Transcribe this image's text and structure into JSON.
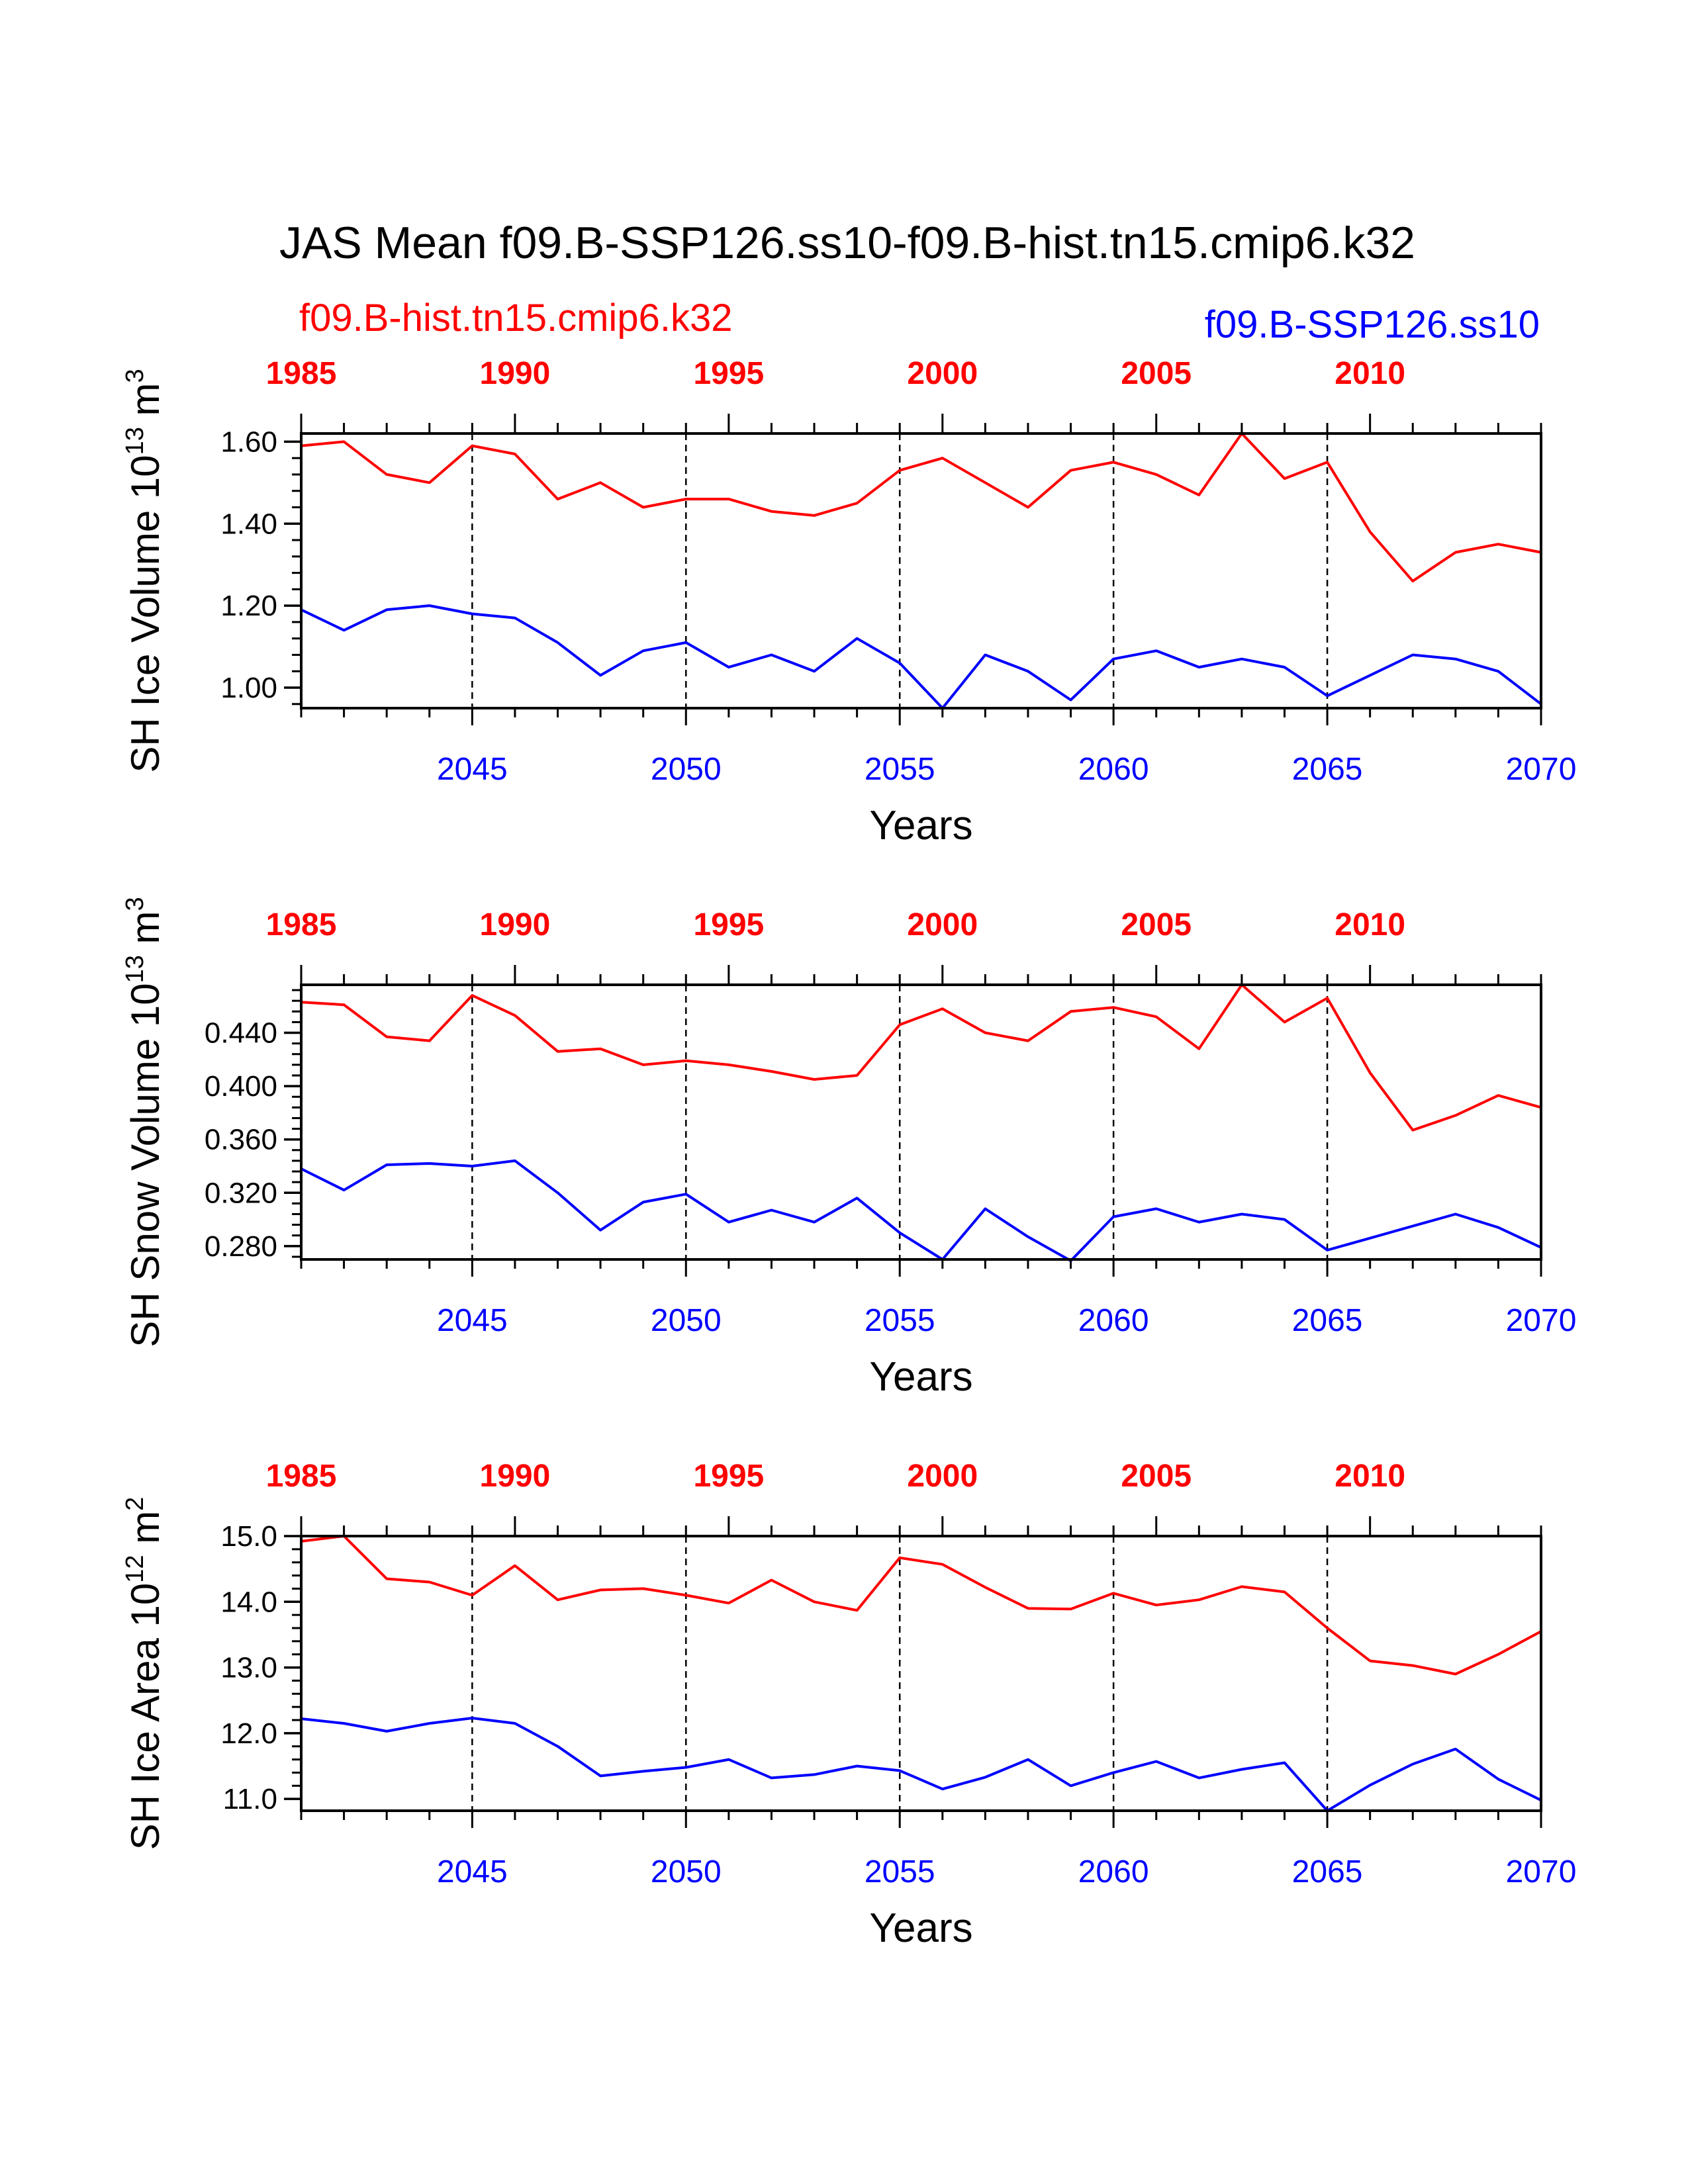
{
  "title": "JAS Mean f09.B-SSP126.ss10-f09.B-hist.tn15.cmip6.k32",
  "legend": {
    "hist_label": "f09.B-hist.tn15.cmip6.k32",
    "ssp_label": "f09.B-SSP126.ss10"
  },
  "colors": {
    "hist": "#ff0000",
    "ssp": "#0000ff",
    "axis": "#000000"
  },
  "chart_data": [
    {
      "type": "line",
      "ylabel_main": "SH Ice Volume 10",
      "ylabel_exp": "13",
      "ylabel_unit": " m",
      "ylabel_unit_exp": "3",
      "xlabel": "Years",
      "ylim": [
        0.95,
        1.62
      ],
      "yticks": [
        1.0,
        1.2,
        1.4,
        1.6
      ],
      "yticklabels": [
        "1.00",
        "1.20",
        "1.40",
        "1.60"
      ],
      "yminor_step": 0.04,
      "x_bottom": [
        2041,
        2042,
        2043,
        2044,
        2045,
        2046,
        2047,
        2048,
        2049,
        2050,
        2051,
        2052,
        2053,
        2054,
        2055,
        2056,
        2057,
        2058,
        2059,
        2060,
        2061,
        2062,
        2063,
        2064,
        2065,
        2066,
        2067,
        2068,
        2069,
        2070
      ],
      "x_top": [
        1985,
        1986,
        1987,
        1988,
        1989,
        1990,
        1991,
        1992,
        1993,
        1994,
        1995,
        1996,
        1997,
        1998,
        1999,
        2000,
        2001,
        2002,
        2003,
        2004,
        2005,
        2006,
        2007,
        2008,
        2009,
        2010,
        2011,
        2012,
        2013,
        2014
      ],
      "series": [
        {
          "values": [
            1.59,
            1.6,
            1.52,
            1.5,
            1.59,
            1.57,
            1.46,
            1.5,
            1.44,
            1.46,
            1.46,
            1.43,
            1.42,
            1.45,
            1.53,
            1.56,
            1.5,
            1.44,
            1.53,
            1.55,
            1.52,
            1.47,
            1.62,
            1.51,
            1.55,
            1.38,
            1.26,
            1.33,
            1.35,
            1.33
          ]
        },
        {
          "values": [
            1.19,
            1.14,
            1.19,
            1.2,
            1.18,
            1.17,
            1.11,
            1.03,
            1.09,
            1.11,
            1.05,
            1.08,
            1.04,
            1.12,
            1.06,
            0.95,
            1.08,
            1.04,
            0.97,
            1.07,
            1.09,
            1.05,
            1.07,
            1.05,
            0.98,
            1.03,
            1.08,
            1.07,
            1.04,
            0.96
          ]
        }
      ]
    },
    {
      "type": "line",
      "ylabel_main": "SH Snow Volume 10",
      "ylabel_exp": "13",
      "ylabel_unit": " m",
      "ylabel_unit_exp": "3",
      "xlabel": "Years",
      "ylim": [
        0.27,
        0.476
      ],
      "yticks": [
        0.28,
        0.32,
        0.36,
        0.4,
        0.44
      ],
      "yticklabels": [
        "0.280",
        "0.320",
        "0.360",
        "0.400",
        "0.440"
      ],
      "yminor_step": 0.008,
      "x_bottom": [
        2041,
        2042,
        2043,
        2044,
        2045,
        2046,
        2047,
        2048,
        2049,
        2050,
        2051,
        2052,
        2053,
        2054,
        2055,
        2056,
        2057,
        2058,
        2059,
        2060,
        2061,
        2062,
        2063,
        2064,
        2065,
        2066,
        2067,
        2068,
        2069,
        2070
      ],
      "x_top": [
        1985,
        1986,
        1987,
        1988,
        1989,
        1990,
        1991,
        1992,
        1993,
        1994,
        1995,
        1996,
        1997,
        1998,
        1999,
        2000,
        2001,
        2002,
        2003,
        2004,
        2005,
        2006,
        2007,
        2008,
        2009,
        2010,
        2011,
        2012,
        2013,
        2014
      ],
      "series": [
        {
          "values": [
            0.463,
            0.461,
            0.437,
            0.434,
            0.468,
            0.453,
            0.426,
            0.428,
            0.416,
            0.419,
            0.416,
            0.411,
            0.405,
            0.408,
            0.446,
            0.458,
            0.44,
            0.434,
            0.456,
            0.459,
            0.452,
            0.428,
            0.476,
            0.448,
            0.466,
            0.41,
            0.367,
            0.378,
            0.393,
            0.384
          ]
        },
        {
          "values": [
            0.338,
            0.322,
            0.341,
            0.342,
            0.34,
            0.344,
            0.32,
            0.292,
            0.313,
            0.319,
            0.298,
            0.307,
            0.298,
            0.316,
            0.29,
            0.27,
            0.308,
            0.287,
            0.269,
            0.302,
            0.308,
            0.298,
            0.304,
            0.3,
            0.277,
            0.286,
            0.295,
            0.304,
            0.294,
            0.279
          ]
        }
      ]
    },
    {
      "type": "line",
      "ylabel_main": "SH Ice Area 10",
      "ylabel_exp": "12",
      "ylabel_unit": " m",
      "ylabel_unit_exp": "2",
      "xlabel": "Years",
      "ylim": [
        10.82,
        15.0
      ],
      "yticks": [
        11.0,
        12.0,
        13.0,
        14.0,
        15.0
      ],
      "yticklabels": [
        "11.0",
        "12.0",
        "13.0",
        "14.0",
        "15.0"
      ],
      "yminor_step": 0.2,
      "x_bottom": [
        2041,
        2042,
        2043,
        2044,
        2045,
        2046,
        2047,
        2048,
        2049,
        2050,
        2051,
        2052,
        2053,
        2054,
        2055,
        2056,
        2057,
        2058,
        2059,
        2060,
        2061,
        2062,
        2063,
        2064,
        2065,
        2066,
        2067,
        2068,
        2069,
        2070
      ],
      "x_top": [
        1985,
        1986,
        1987,
        1988,
        1989,
        1990,
        1991,
        1992,
        1993,
        1994,
        1995,
        1996,
        1997,
        1998,
        1999,
        2000,
        2001,
        2002,
        2003,
        2004,
        2005,
        2006,
        2007,
        2008,
        2009,
        2010,
        2011,
        2012,
        2013,
        2014
      ],
      "series": [
        {
          "values": [
            14.92,
            15.0,
            14.35,
            14.3,
            14.1,
            14.55,
            14.03,
            14.18,
            14.2,
            14.1,
            13.98,
            14.33,
            14.0,
            13.87,
            14.67,
            14.57,
            14.22,
            13.9,
            13.89,
            14.13,
            13.95,
            14.03,
            14.23,
            14.15,
            13.6,
            13.1,
            13.03,
            12.9,
            13.2,
            13.55
          ]
        },
        {
          "values": [
            12.22,
            12.15,
            12.03,
            12.15,
            12.23,
            12.15,
            11.8,
            11.35,
            11.42,
            11.48,
            11.6,
            11.32,
            11.37,
            11.5,
            11.43,
            11.15,
            11.33,
            11.6,
            11.2,
            11.4,
            11.57,
            11.32,
            11.45,
            11.55,
            10.82,
            11.21,
            11.53,
            11.76,
            11.3,
            10.98
          ]
        }
      ]
    }
  ]
}
